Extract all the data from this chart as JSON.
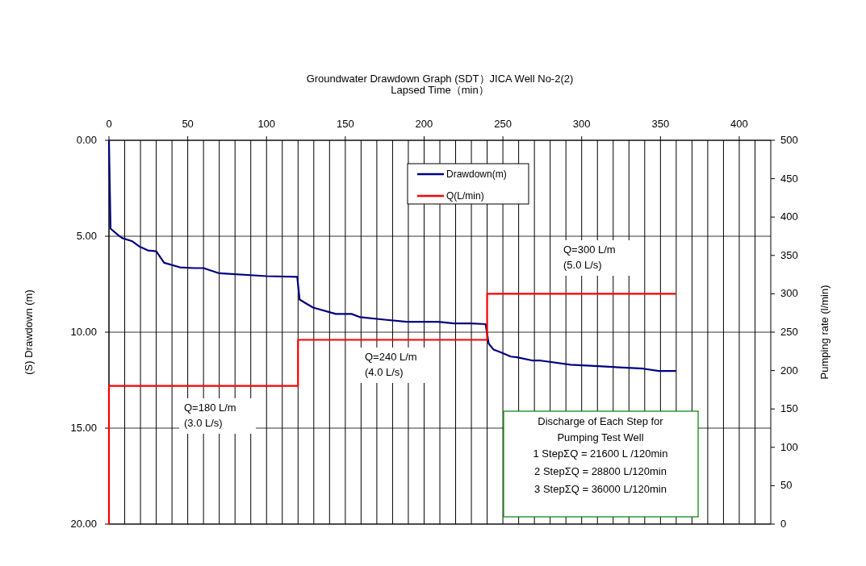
{
  "chart_data": {
    "type": "line",
    "title": "Groundwater Drawdown Graph (SDT）JICA Well No-2(2)",
    "xlabel": "Lapsed Time（min）",
    "ylabel": "(S) Drawdown (m)",
    "y2label": "Pumping rate (l/min)",
    "xlim": [
      0,
      420
    ],
    "xticks": [
      0,
      {
        "value": 10,
        "label": null
      },
      {
        "value": 20,
        "label": null
      },
      {
        "value": 30,
        "label": null
      },
      {
        "value": 40,
        "label": null
      },
      50,
      {
        "value": 60,
        "label": null
      },
      {
        "value": 70,
        "label": null
      },
      {
        "value": 80,
        "label": null
      },
      {
        "value": 90,
        "label": null
      },
      100,
      {
        "value": 110,
        "label": null
      },
      {
        "value": 120,
        "label": null
      },
      {
        "value": 130,
        "label": null
      },
      {
        "value": 140,
        "label": null
      },
      150,
      {
        "value": 160,
        "label": null
      },
      {
        "value": 170,
        "label": null
      },
      {
        "value": 180,
        "label": null
      },
      {
        "value": 190,
        "label": null
      },
      200,
      {
        "value": 210,
        "label": null
      },
      {
        "value": 220,
        "label": null
      },
      {
        "value": 230,
        "label": null
      },
      {
        "value": 240,
        "label": null
      },
      250,
      {
        "value": 260,
        "label": null
      },
      {
        "value": 270,
        "label": null
      },
      {
        "value": 280,
        "label": null
      },
      {
        "value": 290,
        "label": null
      },
      300,
      {
        "value": 310,
        "label": null
      },
      {
        "value": 320,
        "label": null
      },
      {
        "value": 330,
        "label": null
      },
      {
        "value": 340,
        "label": null
      },
      350,
      {
        "value": 360,
        "label": null
      },
      {
        "value": 370,
        "label": null
      },
      {
        "value": 380,
        "label": null
      },
      {
        "value": 390,
        "label": null
      },
      400,
      {
        "value": 410,
        "label": null
      }
    ],
    "ylim": [
      20,
      0
    ],
    "yticks": [
      {
        "value": 0,
        "label": "0.00"
      },
      {
        "value": 5,
        "label": "5.00"
      },
      {
        "value": 10,
        "label": "10.00"
      },
      {
        "value": 15,
        "label": "15.00"
      },
      {
        "value": 20,
        "label": "20.00"
      }
    ],
    "y2lim": [
      0,
      500
    ],
    "y2ticks": [
      0,
      50,
      100,
      150,
      200,
      250,
      300,
      350,
      400,
      450,
      500
    ],
    "grid": true,
    "legend": "top",
    "series": [
      {
        "name": "Drawdown(m)",
        "color": "#000080",
        "x": [
          0,
          1,
          6,
          8.5,
          14.5,
          19.6,
          24.7,
          30,
          35,
          45,
          54,
          60,
          70,
          100,
          119.5,
          121,
          125,
          129.6,
          144,
          154,
          159.5,
          175,
          189,
          209,
          219,
          229.5,
          239,
          241,
          244,
          249,
          255,
          259,
          269,
          274,
          293,
          308,
          339,
          349,
          360
        ],
        "values": [
          0,
          4.6,
          4.95,
          5.1,
          5.25,
          5.55,
          5.74,
          5.78,
          6.38,
          6.62,
          6.66,
          6.66,
          6.93,
          7.08,
          7.12,
          8.3,
          8.5,
          8.72,
          9.05,
          9.05,
          9.22,
          9.35,
          9.46,
          9.46,
          9.54,
          9.54,
          9.58,
          10.6,
          10.9,
          11.06,
          11.27,
          11.31,
          11.48,
          11.48,
          11.7,
          11.76,
          11.9,
          12.02,
          12.02
        ]
      },
      {
        "name": "Q(L/min)",
        "type": "step",
        "axis": "y2",
        "color": "#ff0000",
        "x": [
          0,
          0,
          120,
          240,
          360
        ],
        "values": [
          0,
          180,
          240,
          300,
          300
        ]
      }
    ],
    "annotations": [
      "Q=180 L/m\n(3.0 L/s)",
      "Q=240 L/m\n(4.0 L/s)",
      "Q=300 L/m\n(5.0 L/s)",
      "Discharge of Each Step for\nPumping Test Well\n1 StepΣQ = 21600  L /120min\n2 StepΣQ = 28800  L/120min\n3 StepΣQ = 36000  L/120min"
    ]
  }
}
